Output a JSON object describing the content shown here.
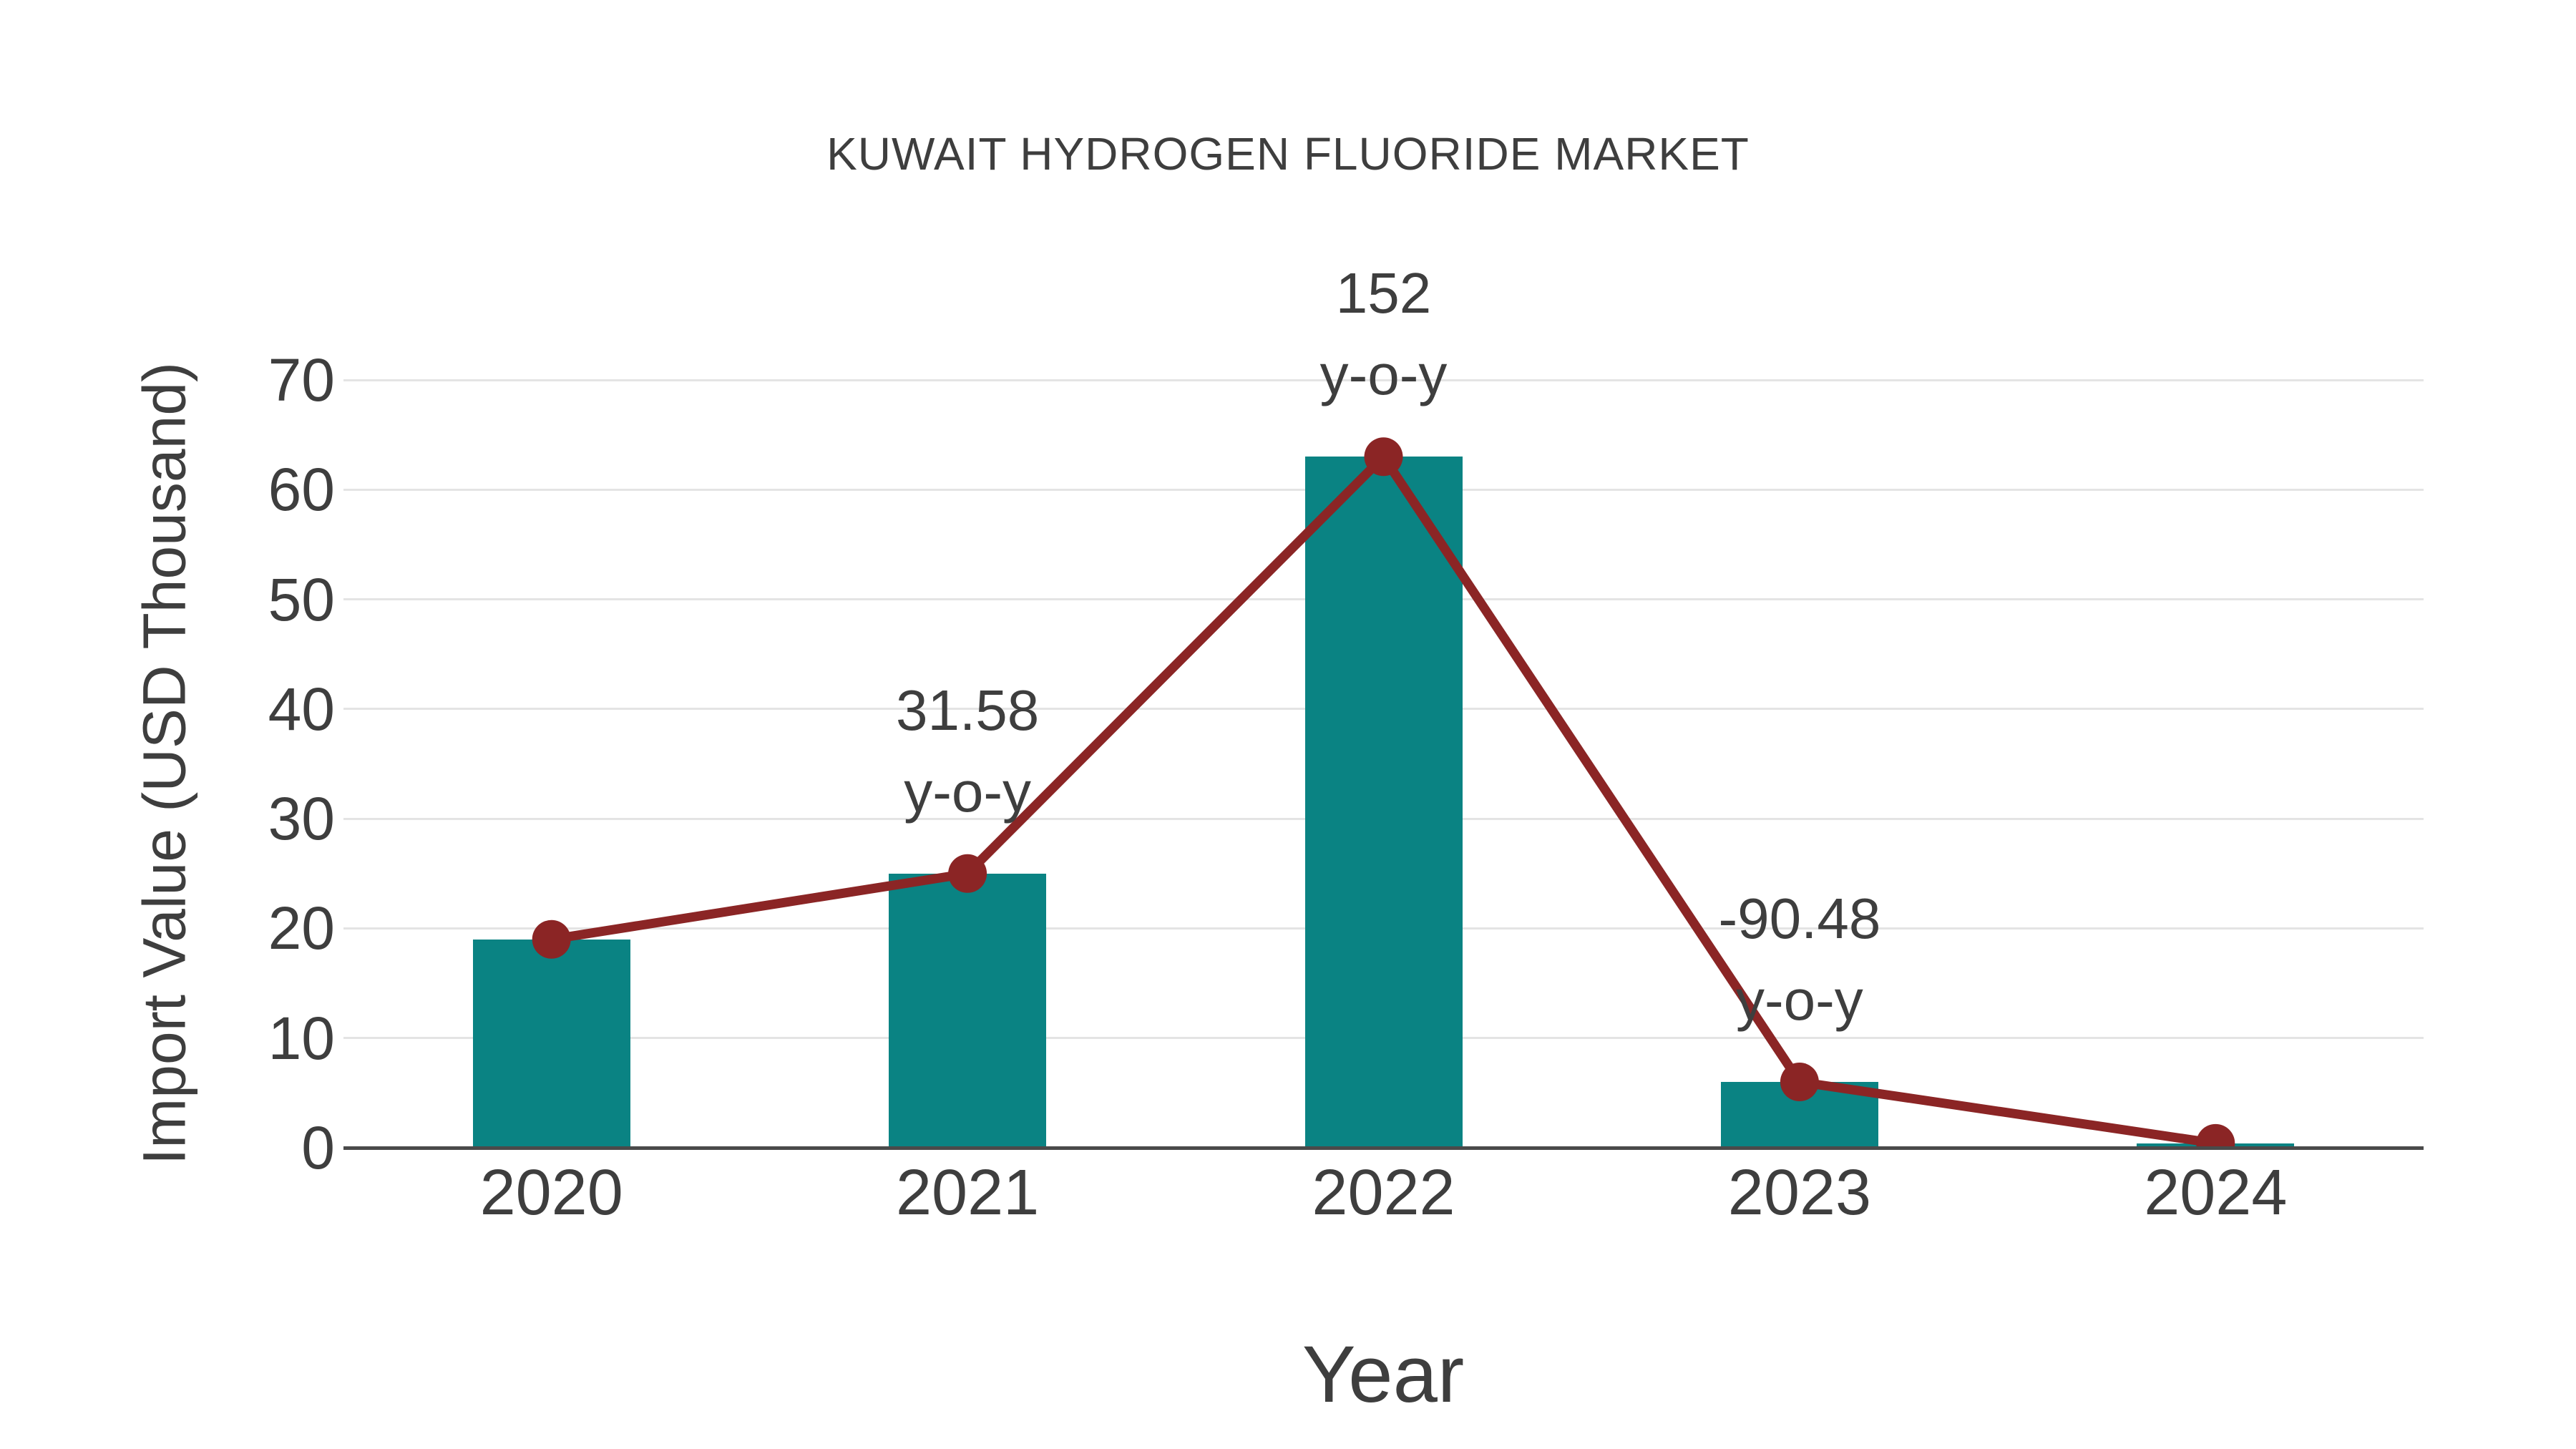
{
  "chart_data": {
    "type": "bar",
    "combo": "bar+line",
    "title": "KUWAIT HYDROGEN FLUORIDE MARKET",
    "xlabel": "Year",
    "ylabel": "Import Value (USD Thousand)",
    "categories": [
      "2020",
      "2021",
      "2022",
      "2023",
      "2024"
    ],
    "series": [
      {
        "name": "Import Value bars",
        "type": "bar",
        "values": [
          19,
          25,
          63,
          6,
          0.4
        ],
        "color": "#0A8383"
      },
      {
        "name": "Import Value trend",
        "type": "line",
        "values": [
          19,
          25,
          63,
          6,
          0.4
        ],
        "color": "#8B2525"
      }
    ],
    "annotations": [
      {
        "category": "2021",
        "line1": "31.58",
        "line2": "y-o-y"
      },
      {
        "category": "2022",
        "line1": "152",
        "line2": "y-o-y"
      },
      {
        "category": "2023",
        "line1": "-90.48",
        "line2": "y-o-y"
      }
    ],
    "yticks": [
      0,
      10,
      20,
      30,
      40,
      50,
      60,
      70
    ],
    "ylim": [
      0,
      70
    ],
    "grid": "horizontal",
    "legend": "none"
  },
  "colors": {
    "bar": "#0A8383",
    "line": "#8B2525",
    "marker": "#8B2525",
    "text": "#3E3E3E",
    "gridline": "#E4E4E4",
    "axis": "#4A4A4A",
    "background": "#FFFFFF"
  }
}
